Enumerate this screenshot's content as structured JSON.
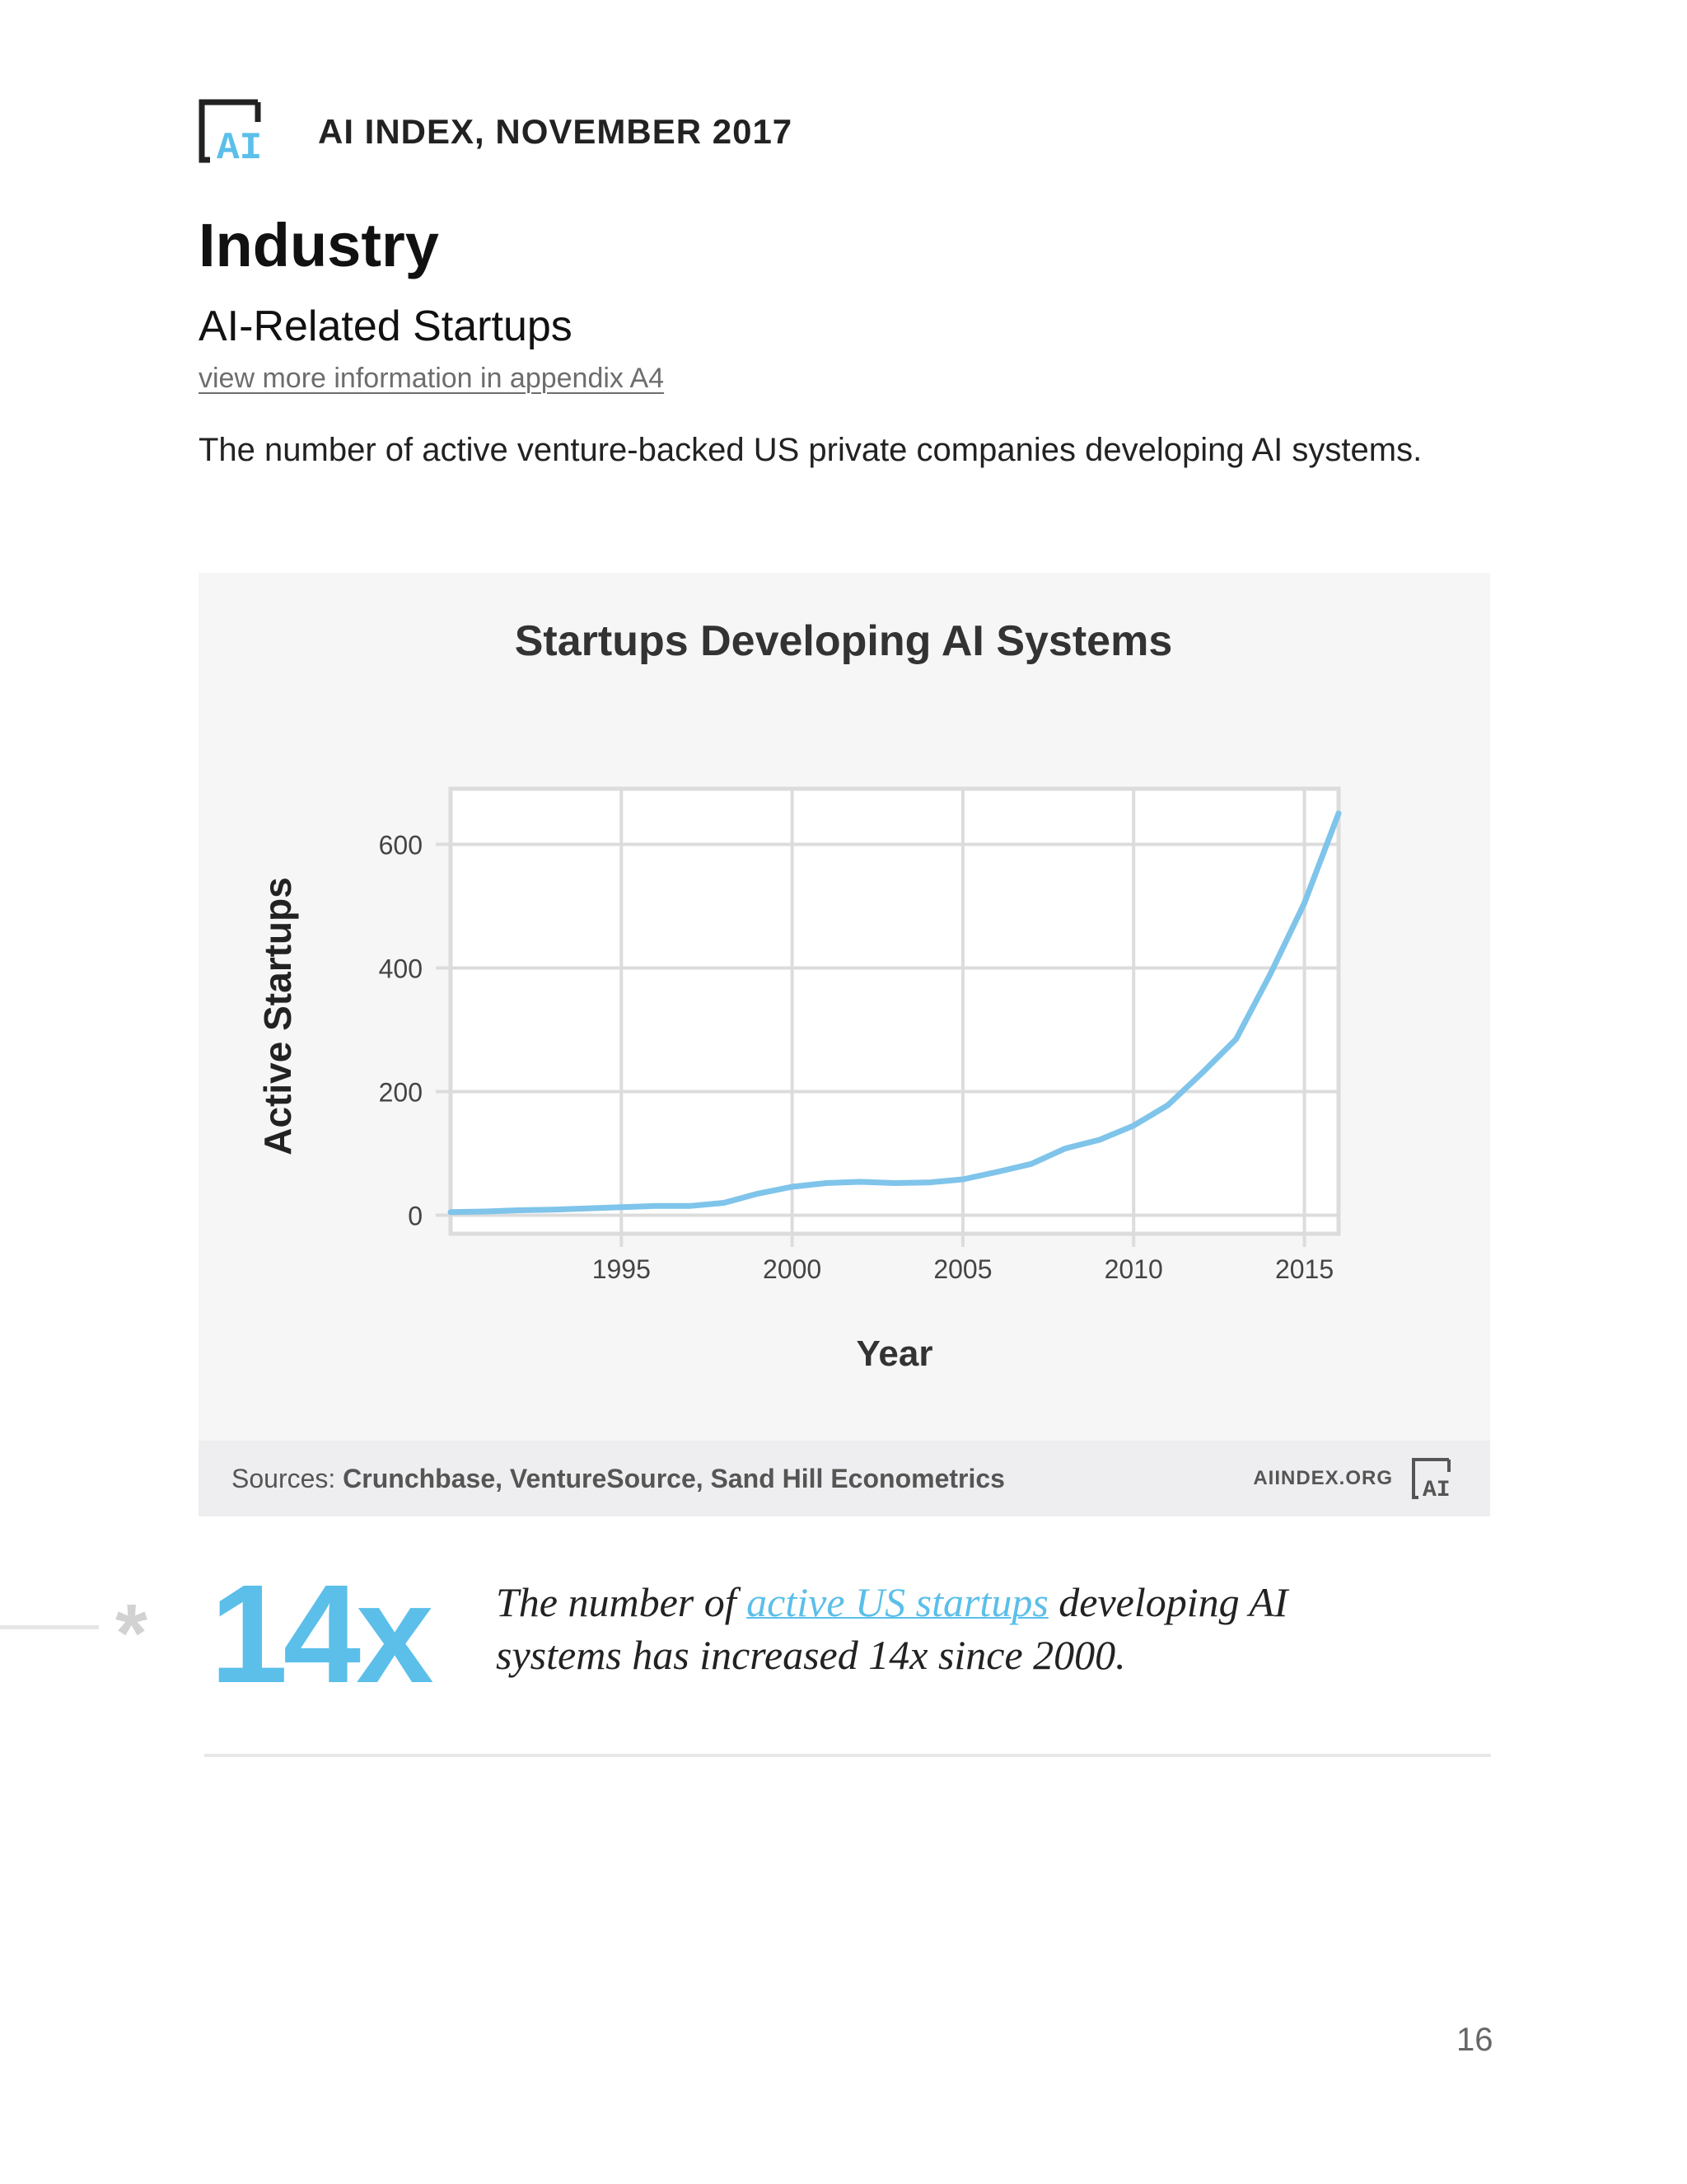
{
  "header": {
    "title": "AI INDEX, NOVEMBER 2017",
    "logo_text": "AI"
  },
  "section": {
    "title": "Industry",
    "subtitle": "AI-Related Startups",
    "appendix_link": "view more information in appendix A4",
    "description": "The number of active venture-backed US private companies developing AI systems."
  },
  "chart_data": {
    "type": "line",
    "title": "Startups Developing AI Systems",
    "xlabel": "Year",
    "ylabel": "Active Startups",
    "xlim": [
      1990,
      2016
    ],
    "ylim": [
      -30,
      690
    ],
    "x_ticks": [
      1995,
      2000,
      2005,
      2010,
      2015
    ],
    "y_ticks": [
      0,
      200,
      400,
      600
    ],
    "grid": true,
    "series": [
      {
        "color": "#7fc4ea",
        "x": [
          1990,
          1991,
          1992,
          1993,
          1994,
          1995,
          1996,
          1997,
          1998,
          1999,
          2000,
          2001,
          2002,
          2003,
          2004,
          2005,
          2006,
          2007,
          2008,
          2009,
          2010,
          2011,
          2012,
          2013,
          2014,
          2015,
          2016
        ],
        "values": [
          5,
          6,
          8,
          9,
          11,
          13,
          15,
          15,
          20,
          35,
          46,
          52,
          54,
          52,
          53,
          58,
          70,
          83,
          108,
          122,
          145,
          178,
          230,
          285,
          390,
          505,
          650
        ]
      }
    ]
  },
  "sources": {
    "label": "Sources:",
    "text": "Crunchbase, VentureSource, Sand Hill Econometrics",
    "brand": "AIINDEX.ORG"
  },
  "highlight": {
    "asterisk": "*",
    "number": "14x",
    "text_before": "The number of ",
    "link_text": "active US startups",
    "text_after": " developing AI systems has increased 14x since 2000."
  },
  "page_number": "16",
  "colors": {
    "accent": "#5bbfe9",
    "line": "#7fc4ea",
    "grid": "#dcdcdc"
  }
}
